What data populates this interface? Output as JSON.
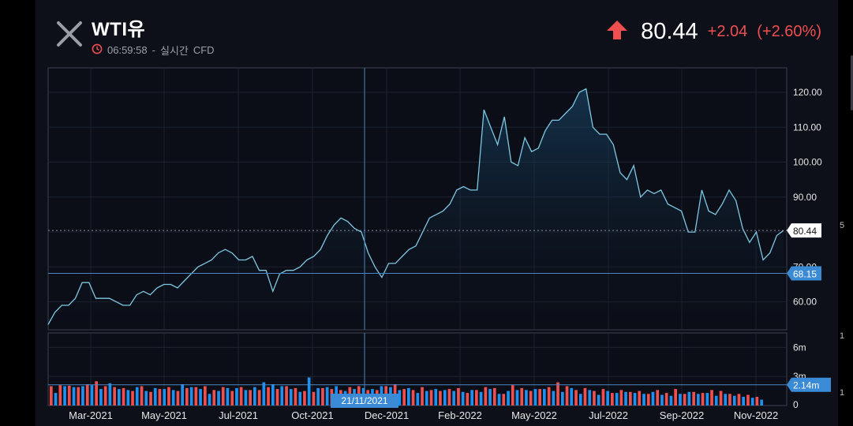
{
  "header": {
    "title": "WTI유",
    "time": "06:59:58",
    "separator": "-",
    "mode": "실시간",
    "type": "CFD",
    "last_price": "80.44",
    "change": "+2.04",
    "change_pct": "(+2.60%)"
  },
  "icons": [
    "close-icon",
    "clock-icon",
    "up-arrow-icon"
  ],
  "colors": {
    "up": "#ef4f4f",
    "down": "#1e90f0",
    "line": "#7ec8e3",
    "badge": "#3a8ad6"
  },
  "crosshair": {
    "date_label": "21/11/2021",
    "price_label": "68.15",
    "price": 68.15,
    "volume_label": "2.14m",
    "volume": 2.14
  },
  "last_marker": {
    "label": "80.44",
    "value": 80.44
  },
  "right_edge": {
    "tick1": "5",
    "tick2": "1",
    "tick3": "1"
  },
  "chart_data": {
    "type": "line",
    "title": "WTI유",
    "xlabel": "",
    "ylabel": "",
    "ylim": [
      52,
      127
    ],
    "y_ticks": [
      "60.00",
      "70.00",
      "80.00",
      "90.00",
      "100.00",
      "110.00",
      "120.00"
    ],
    "y_tick_values": [
      60,
      70,
      80,
      90,
      100,
      110,
      120
    ],
    "x_ticks": [
      "Mar-2021",
      "May-2021",
      "Jul-2021",
      "Oct-2021",
      "Dec-2021",
      "Feb-2022",
      "May-2022",
      "Jul-2022",
      "Sep-2022",
      "Nov-2022"
    ],
    "price": [
      53.5,
      57,
      59,
      59,
      61,
      65.5,
      65.5,
      61,
      61,
      61,
      60,
      59,
      59,
      62,
      63,
      62,
      64,
      65,
      65,
      64,
      66,
      68,
      70,
      71,
      72,
      74,
      75,
      74,
      72,
      72,
      73,
      69,
      69,
      63,
      68,
      69,
      69,
      70,
      72,
      73,
      75,
      79,
      82,
      84,
      83,
      81,
      80,
      74,
      70,
      67,
      71,
      71,
      73,
      75,
      76,
      80,
      84,
      85,
      86,
      88,
      92,
      93,
      92,
      92,
      115,
      110,
      105,
      113,
      100,
      99,
      107,
      103,
      104,
      109,
      112,
      112,
      114,
      116,
      120,
      121,
      110,
      108,
      108,
      105,
      97,
      95,
      99,
      90,
      92,
      91,
      92,
      88,
      87,
      86,
      80,
      80,
      92,
      86,
      85,
      88,
      92,
      89,
      81,
      77,
      80,
      72,
      74,
      79,
      80.44
    ],
    "volume_ylim": [
      0,
      7.5
    ],
    "volume_ticks": [
      "0",
      "3m",
      "6m"
    ],
    "volume_tick_values": [
      0,
      3,
      6
    ],
    "volume_series": [
      {
        "name": "up",
        "values": [
          2.0,
          2.1,
          2.05,
          1.9,
          2.2,
          2.5,
          2.0,
          1.9,
          1.8,
          1.5,
          2.0,
          1.4,
          1.7,
          1.9,
          1.5,
          1.8,
          1.9,
          2.0,
          1.6,
          1.9,
          1.5,
          1.9,
          1.6,
          1.6,
          1.9,
          1.7,
          2.0,
          1.8,
          1.5,
          1.4,
          1.8,
          1.7,
          1.6,
          1.9,
          2.0,
          1.6,
          1.6,
          2.0,
          2.2,
          1.7,
          1.6,
          1.9,
          1.6,
          1.5,
          1.7,
          1.8,
          1.3,
          1.6,
          1.9,
          1.8,
          1.2,
          2.1,
          1.8,
          1.5,
          1.7,
          1.9,
          2.4,
          2.0,
          1.6,
          1.8,
          1.5,
          1.7,
          1.3,
          1.6,
          1.4,
          1.5,
          1.2,
          1.6,
          1.3,
          1.7,
          1.2,
          1.4,
          1.3,
          1.6,
          1.5,
          1.2,
          1.2,
          1.1,
          0.9
        ]
      },
      {
        "name": "down",
        "values": [
          1.3,
          2.0,
          1.9,
          2.0,
          2.1,
          1.7,
          2.3,
          1.7,
          1.6,
          1.9,
          1.5,
          1.8,
          1.7,
          1.6,
          2.2,
          1.9,
          1.7,
          1.2,
          1.5,
          1.8,
          1.8,
          1.6,
          1.9,
          2.4,
          2.2,
          2.0,
          1.7,
          1.4,
          2.9,
          1.8,
          1.9,
          2.0,
          1.5,
          1.7,
          1.8,
          1.7,
          2.0,
          1.9,
          1.6,
          1.8,
          1.3,
          1.5,
          1.7,
          1.6,
          1.5,
          1.4,
          1.6,
          1.4,
          1.7,
          1.2,
          1.5,
          1.6,
          1.6,
          1.7,
          1.7,
          1.5,
          1.4,
          1.8,
          1.2,
          1.6,
          1.1,
          1.5,
          1.3,
          1.4,
          1.3,
          1.2,
          1.4,
          1.1,
          1.0,
          1.2,
          1.4,
          1.2,
          1.3,
          1.0,
          1.2,
          1.0,
          0.9,
          0.8,
          0.6
        ]
      }
    ]
  }
}
